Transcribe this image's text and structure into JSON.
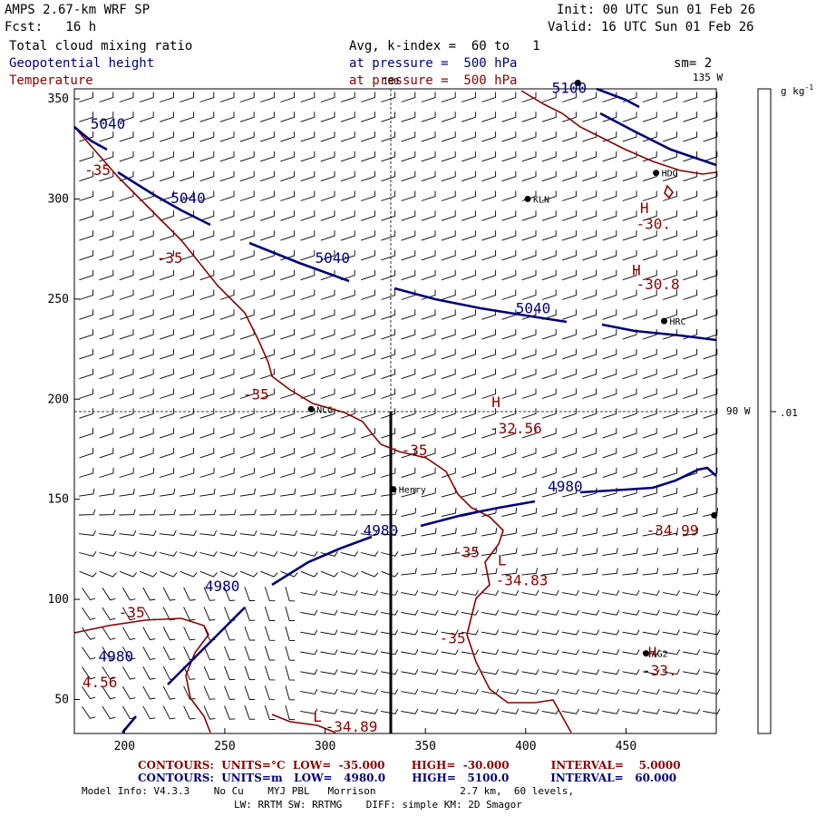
{
  "header": {
    "model": "AMPS 2.67-km WRF SP",
    "forecast": "Fcst:   16 h",
    "init": "Init: 00 UTC Sun 01 Feb 26",
    "valid": "Valid: 16 UTC Sun 01 Feb 26",
    "field1": "Total cloud mixing ratio",
    "field2": "Geopotential height",
    "field3": "Temperature",
    "level_avg": "Avg, k-index =  60 to   1",
    "level_geo": "at pressure =  500 hPa",
    "level_temp": "at pressure =  500 hPa",
    "smoothing": "sm= 2"
  },
  "colors": {
    "geopotential": "#00007a",
    "temperature": "#8b0000",
    "text": "#000000"
  },
  "axes": {
    "x_ticks": [
      "200",
      "250",
      "300",
      "350",
      "400",
      "450"
    ],
    "y_ticks": [
      "350",
      "300",
      "250",
      "200",
      "150",
      "100",
      "50"
    ],
    "meridian_top": "180",
    "meridian_135": "135 W",
    "meridian_90": "90 W"
  },
  "colorbar": {
    "unit": "g kg",
    "unit_exp": "-1",
    "value": ".01"
  },
  "stations": [
    {
      "name": "HDG",
      "x": 465,
      "y": 313
    },
    {
      "name": "KLN",
      "x": 401,
      "y": 300
    },
    {
      "name": "HRC",
      "x": 469,
      "y": 239
    },
    {
      "name": "NCG",
      "x": 293,
      "y": 195
    },
    {
      "name": "Henry",
      "x": 334,
      "y": 155
    },
    {
      "name": "AG2",
      "x": 460,
      "y": 73
    },
    {
      "name": "",
      "x": 426,
      "y": 358
    },
    {
      "name": "",
      "x": 494,
      "y": 142
    }
  ],
  "height_labels": [
    {
      "text": "5100",
      "x": 413,
      "y": 353
    },
    {
      "text": "5040",
      "x": 183,
      "y": 335
    },
    {
      "text": "5040",
      "x": 223,
      "y": 298
    },
    {
      "text": "5040",
      "x": 295,
      "y": 268
    },
    {
      "text": "5040",
      "x": 395,
      "y": 243
    },
    {
      "text": "4980",
      "x": 411,
      "y": 154
    },
    {
      "text": "4980",
      "x": 319,
      "y": 132
    },
    {
      "text": "4980",
      "x": 240,
      "y": 104
    },
    {
      "text": "4980",
      "x": 187,
      "y": 69
    }
  ],
  "temp_labels": [
    {
      "text": "-35",
      "x": 180,
      "y": 312
    },
    {
      "text": "-35",
      "x": 216,
      "y": 268
    },
    {
      "text": "-35",
      "x": 259,
      "y": 200
    },
    {
      "text": "-35",
      "x": 338,
      "y": 172
    },
    {
      "text": "-35",
      "x": 364,
      "y": 121
    },
    {
      "text": "-35",
      "x": 197,
      "y": 91
    },
    {
      "text": "-35",
      "x": 357,
      "y": 78
    },
    {
      "text": "-30.",
      "x": 455,
      "y": 285
    },
    {
      "text": "-30.8",
      "x": 455,
      "y": 255
    },
    {
      "text": "-32.56",
      "x": 382,
      "y": 183
    },
    {
      "text": "-34.99",
      "x": 460,
      "y": 132
    },
    {
      "text": "-34.83",
      "x": 385,
      "y": 107
    },
    {
      "text": "-33.",
      "x": 458,
      "y": 62
    },
    {
      "text": "4.56",
      "x": 179,
      "y": 56
    },
    {
      "text": "-34.89",
      "x": 300,
      "y": 34
    }
  ],
  "hl_markers": [
    {
      "text": "H",
      "x": 457,
      "y": 293
    },
    {
      "text": "H",
      "x": 453,
      "y": 262
    },
    {
      "text": "H",
      "x": 383,
      "y": 196
    },
    {
      "text": "L",
      "x": 386,
      "y": 117
    },
    {
      "text": "H",
      "x": 461,
      "y": 71
    },
    {
      "text": "L",
      "x": 294,
      "y": 39
    }
  ],
  "footer": {
    "red_line": "CONTOURS:  UNITS=°C  LOW=  -35.000       HIGH=  -30.000           INTERVAL=    5.0000",
    "blue_line": "CONTOURS:  UNITS=m   LOW=   4980.0       HIGH=   5100.0           INTERVAL=   60.000",
    "info1": "Model Info: V4.3.3    No Cu    MYJ PBL   Morrison              2.7 km,  60 levels,",
    "info2": "LW: RRTM SW: RRTMG    DIFF: simple KM: 2D Smagor"
  }
}
